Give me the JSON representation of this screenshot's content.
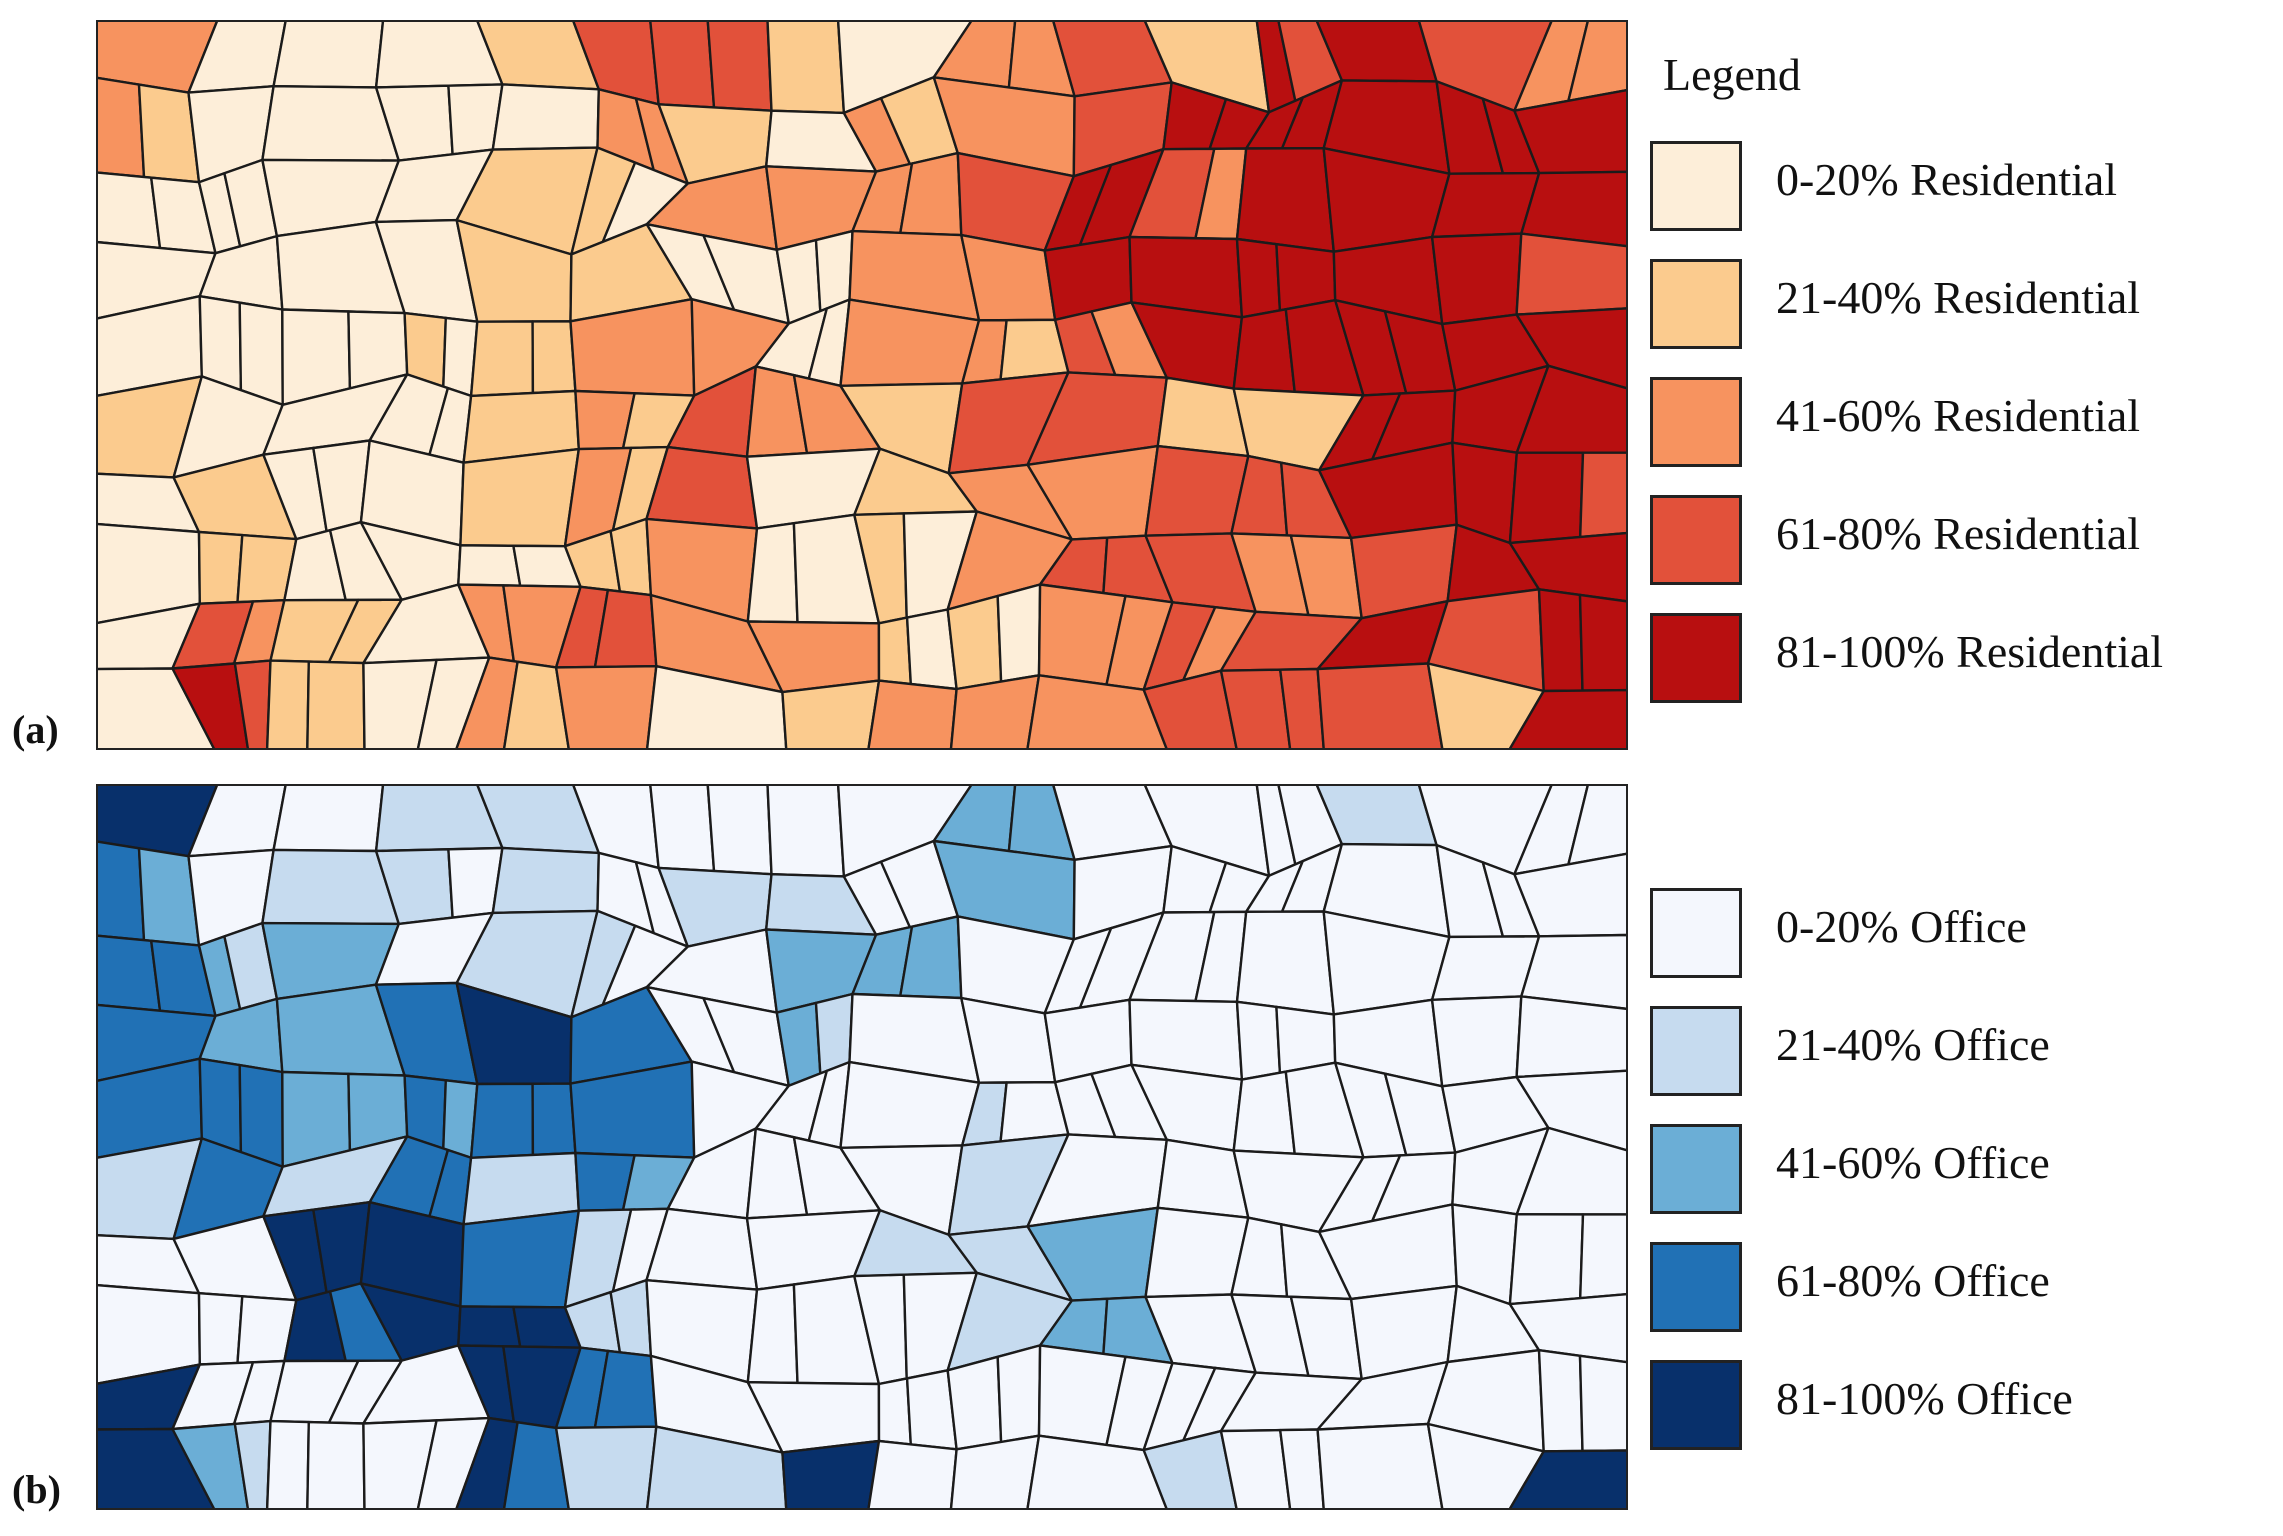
{
  "legend": {
    "title": "Legend"
  },
  "panels": [
    {
      "id": "a",
      "label": "(a)",
      "theme": "Residential",
      "colors": [
        "#fdeed9",
        "#fbcb8e",
        "#f7935f",
        "#e2513a",
        "#b80f10"
      ],
      "legend_items": [
        {
          "label": "0-20% Residential",
          "color": "#fdeed9"
        },
        {
          "label": "21-40% Residential",
          "color": "#fbcb8e"
        },
        {
          "label": "41-60% Residential",
          "color": "#f7935f"
        },
        {
          "label": "61-80% Residential",
          "color": "#e2513a"
        },
        {
          "label": "81-100% Residential",
          "color": "#b80f10"
        }
      ],
      "class_grid": [
        [
          2,
          0,
          0,
          0,
          1,
          3,
          3,
          1,
          0,
          2,
          3,
          1,
          4,
          4,
          3,
          2
        ],
        [
          2,
          0,
          0,
          0,
          0,
          2,
          1,
          0,
          2,
          2,
          3,
          4,
          4,
          4,
          4,
          4
        ],
        [
          0,
          0,
          0,
          0,
          1,
          1,
          2,
          2,
          2,
          3,
          4,
          3,
          4,
          4,
          4,
          4
        ],
        [
          0,
          0,
          0,
          0,
          1,
          1,
          0,
          0,
          2,
          2,
          4,
          4,
          4,
          4,
          4,
          3
        ],
        [
          0,
          0,
          0,
          1,
          1,
          2,
          2,
          0,
          2,
          2,
          3,
          4,
          4,
          4,
          4,
          4
        ],
        [
          1,
          0,
          0,
          0,
          1,
          2,
          3,
          2,
          1,
          3,
          3,
          1,
          1,
          4,
          4,
          4
        ],
        [
          0,
          1,
          0,
          0,
          1,
          2,
          3,
          0,
          1,
          2,
          2,
          3,
          3,
          4,
          4,
          4
        ],
        [
          0,
          1,
          0,
          0,
          0,
          1,
          2,
          0,
          1,
          2,
          3,
          3,
          2,
          3,
          4,
          4
        ],
        [
          0,
          3,
          1,
          0,
          2,
          3,
          2,
          2,
          1,
          1,
          2,
          3,
          3,
          4,
          3,
          4
        ],
        [
          0,
          4,
          1,
          0,
          2,
          2,
          0,
          1,
          2,
          2,
          2,
          3,
          3,
          3,
          1,
          4
        ]
      ]
    },
    {
      "id": "b",
      "label": "(b)",
      "theme": "Office",
      "colors": [
        "#f4f7fd",
        "#c6dbef",
        "#6baed6",
        "#2171b5",
        "#08306b"
      ],
      "legend_items": [
        {
          "label": "0-20% Office",
          "color": "#f4f7fd"
        },
        {
          "label": "21-40% Office",
          "color": "#c6dbef"
        },
        {
          "label": "41-60% Office",
          "color": "#6baed6"
        },
        {
          "label": "61-80% Office",
          "color": "#2171b5"
        },
        {
          "label": "81-100% Office",
          "color": "#08306b"
        }
      ],
      "class_grid": [
        [
          4,
          0,
          0,
          1,
          1,
          0,
          0,
          0,
          0,
          2,
          0,
          0,
          0,
          1,
          0,
          0
        ],
        [
          3,
          0,
          1,
          1,
          1,
          0,
          1,
          1,
          0,
          2,
          0,
          0,
          0,
          0,
          0,
          0
        ],
        [
          3,
          2,
          2,
          0,
          1,
          1,
          0,
          2,
          2,
          0,
          0,
          0,
          0,
          0,
          0,
          0
        ],
        [
          3,
          2,
          2,
          3,
          4,
          3,
          0,
          2,
          0,
          0,
          0,
          0,
          0,
          0,
          0,
          0
        ],
        [
          3,
          3,
          2,
          3,
          3,
          3,
          0,
          0,
          0,
          1,
          0,
          0,
          0,
          0,
          0,
          0
        ],
        [
          1,
          3,
          1,
          3,
          1,
          3,
          0,
          0,
          0,
          1,
          0,
          0,
          0,
          0,
          0,
          0
        ],
        [
          0,
          0,
          4,
          4,
          3,
          1,
          0,
          0,
          1,
          1,
          2,
          0,
          0,
          0,
          0,
          0
        ],
        [
          0,
          0,
          4,
          4,
          4,
          1,
          0,
          0,
          0,
          1,
          2,
          0,
          0,
          0,
          0,
          0
        ],
        [
          4,
          0,
          0,
          0,
          4,
          3,
          0,
          0,
          0,
          0,
          0,
          0,
          0,
          0,
          0,
          0
        ],
        [
          4,
          2,
          0,
          0,
          4,
          1,
          1,
          4,
          0,
          0,
          0,
          1,
          0,
          0,
          0,
          4
        ]
      ]
    }
  ]
}
